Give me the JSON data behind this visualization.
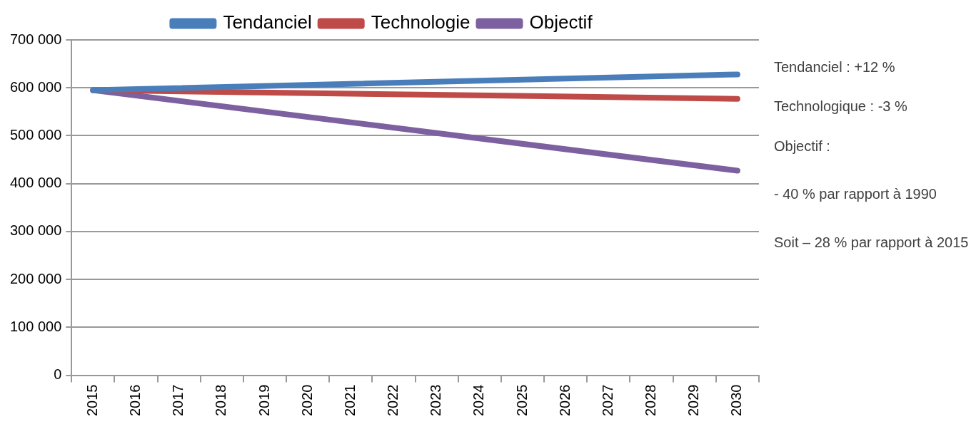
{
  "chart_data": {
    "type": "line",
    "categories": [
      "2015",
      "2016",
      "2017",
      "2018",
      "2019",
      "2020",
      "2021",
      "2022",
      "2023",
      "2024",
      "2025",
      "2026",
      "2027",
      "2028",
      "2029",
      "2030"
    ],
    "series": [
      {
        "name": "Tendanciel",
        "color": "#4a7ebb",
        "values": [
          595000,
          null,
          null,
          null,
          null,
          null,
          null,
          null,
          null,
          null,
          null,
          null,
          null,
          null,
          null,
          628000
        ]
      },
      {
        "name": "Technologie",
        "color": "#be4b48",
        "values": [
          595000,
          null,
          null,
          null,
          null,
          null,
          null,
          null,
          null,
          null,
          null,
          null,
          null,
          null,
          null,
          577000
        ]
      },
      {
        "name": "Objectif",
        "color": "#7d60a0",
        "values": [
          595000,
          null,
          null,
          null,
          null,
          null,
          null,
          null,
          null,
          null,
          null,
          null,
          null,
          null,
          null,
          427000
        ]
      }
    ],
    "ylim": [
      0,
      700000
    ],
    "yticks": [
      0,
      {
        "value": 100000,
        "label": "100 000"
      },
      {
        "value": 200000,
        "label": "200 000"
      },
      {
        "value": 300000,
        "label": "300 000"
      },
      {
        "value": 400000,
        "label": "400 000"
      },
      {
        "value": 500000,
        "label": "500 000"
      },
      {
        "value": 600000,
        "label": "600 000"
      },
      {
        "value": 700000,
        "label": "700 000"
      }
    ],
    "grid": "y",
    "legend": "top",
    "marker": "none",
    "line_style": "solid",
    "annotations": [
      "Tendanciel : +12 %",
      "Technologique : -3 %",
      "Objectif :",
      "- 40 % par rapport à 1990",
      "Soit – 28 % par rapport à 2015"
    ]
  }
}
